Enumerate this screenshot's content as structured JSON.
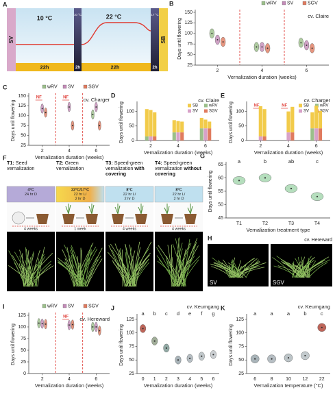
{
  "figure": {
    "A": {
      "label": "A",
      "left": "SV",
      "right": "SB",
      "phase1_temp": "10 °C",
      "phase2_temp": "10 °C",
      "phase3_temp": "22 °C",
      "phase4_temp": "17 °C",
      "durations": [
        "22h",
        "2h",
        "22h",
        "2h"
      ]
    },
    "F": {
      "label": "F",
      "treatments": [
        {
          "id": "T1:",
          "name": "Seed vernalization",
          "conditions": [
            "4°C",
            "24 hr D"
          ],
          "duration": "4 weeks"
        },
        {
          "id": "T2:",
          "name": "Green vernalization",
          "conditions": [
            "22°C/17°C",
            "22 hr L/",
            "2 hr D"
          ],
          "duration": "1 week"
        },
        {
          "id": "T3:",
          "name": "Speed-green vernalization",
          "emphasis": "with covering",
          "conditions": [
            "8°C",
            "22 hr L/",
            "2 hr D"
          ],
          "duration": "4 weeks"
        },
        {
          "id": "T4:",
          "name": "Speed-green vernalization",
          "emphasis": "without covering",
          "conditions": [
            "8°C",
            "22 hr L/",
            "2 hr D"
          ],
          "duration": "4 weeks"
        }
      ]
    },
    "H": {
      "label": "H",
      "subtitle": "cv. Hereward",
      "photos": [
        "SV",
        "SGV"
      ]
    }
  },
  "chart_data": [
    {
      "panel": "B",
      "type": "violin",
      "subtitle": "cv. Claire",
      "xlabel": "Vernalization duration (weeks)",
      "ylabel": "Days until flowering",
      "x": [
        2,
        4,
        6
      ],
      "xlim": [
        1,
        7
      ],
      "xticks": [
        2,
        4,
        6
      ],
      "vlines": [
        3,
        5
      ],
      "ylim": [
        25,
        150
      ],
      "yticks": [
        25,
        50,
        75,
        100,
        125,
        150
      ],
      "missing_label": "NF",
      "series": [
        {
          "name": "wRV",
          "color": "#9bbf8a",
          "values": [
            100,
            68,
            78
          ]
        },
        {
          "name": "SV",
          "color": "#c48bb8",
          "values": [
            85,
            68,
            72
          ]
        },
        {
          "name": "SGV",
          "color": "#e07b5f",
          "values": [
            80,
            65,
            65
          ]
        }
      ]
    },
    {
      "panel": "C",
      "type": "violin",
      "subtitle": "cv. Charger",
      "xlabel": "Vernalization duration (weeks)",
      "ylabel": "Days until flowering",
      "x": [
        2,
        4,
        6
      ],
      "xlim": [
        1,
        7
      ],
      "xticks": [
        2,
        4,
        6
      ],
      "vlines": [
        3,
        5
      ],
      "ylim": [
        25,
        150
      ],
      "yticks": [
        25,
        50,
        75,
        100,
        125,
        150
      ],
      "missing_label": "NF",
      "series": [
        {
          "name": "wRV",
          "color": "#9bbf8a",
          "values": [
            null,
            null,
            103
          ]
        },
        {
          "name": "SV",
          "color": "#c48bb8",
          "values": [
            118,
            122,
            122
          ]
        },
        {
          "name": "SGV",
          "color": "#e07b5f",
          "values": [
            108,
            75,
            75
          ]
        }
      ]
    },
    {
      "panel": "D",
      "type": "stacked_bar",
      "subtitle": "cv. Claire",
      "xlabel": "Vernalization duration (weeks)",
      "ylabel": "Days until flowering",
      "x": [
        2,
        4,
        6
      ],
      "xlim": [
        1,
        7
      ],
      "xticks": [
        2,
        4,
        6
      ],
      "ylim": [
        0,
        125
      ],
      "yticks": [
        0,
        50,
        100
      ],
      "missing_label": "NF",
      "sb_series": {
        "name": "SB",
        "color": "#f2cb4a"
      },
      "series": [
        {
          "name": "wRV",
          "color": "#9bbf8a",
          "values": [
            14,
            28,
            42
          ],
          "sb_values": [
            94,
            42,
            36
          ]
        },
        {
          "name": "SV",
          "color": "#d8a2c8",
          "values": [
            14,
            28,
            42
          ],
          "sb_values": [
            91,
            39,
            30
          ]
        },
        {
          "name": "SGV",
          "color": "#e07b5f",
          "values": [
            14,
            28,
            42
          ],
          "sb_values": [
            83,
            37,
            23
          ]
        }
      ]
    },
    {
      "panel": "E",
      "type": "stacked_bar",
      "subtitle": "cv. Charger",
      "xlabel": "Vernalization duration (weeks)",
      "ylabel": "Days until flowering",
      "x": [
        2,
        4,
        6
      ],
      "xlim": [
        1,
        7
      ],
      "xticks": [
        2,
        4,
        6
      ],
      "ylim": [
        0,
        125
      ],
      "yticks": [
        0,
        50,
        100
      ],
      "missing_label": "NF",
      "sb_series": {
        "name": "SB",
        "color": "#f2cb4a"
      },
      "series": [
        {
          "name": "wRV",
          "color": "#9bbf8a",
          "values": [
            null,
            null,
            42
          ],
          "sb_values": [
            null,
            null,
            55
          ]
        },
        {
          "name": "SV",
          "color": "#d8a2c8",
          "values": [
            14,
            28,
            42
          ],
          "sb_values": [
            104,
            72,
            78
          ]
        },
        {
          "name": "SGV",
          "color": "#e07b5f",
          "values": [
            14,
            28,
            42
          ],
          "sb_values": [
            94,
            88,
            60
          ]
        }
      ]
    },
    {
      "panel": "G",
      "type": "violin",
      "xlabel": "Vernalization treatment type",
      "ylabel": "Days until flowering",
      "categories": [
        "T1",
        "T2",
        "T3",
        "T4"
      ],
      "values": [
        59,
        60,
        56,
        53
      ],
      "letters": [
        "a",
        "b",
        "ab",
        "c"
      ],
      "color": "#a8d8b2",
      "ylim": [
        45,
        65
      ],
      "yticks": [
        45,
        50,
        55,
        60,
        65
      ]
    },
    {
      "panel": "I",
      "type": "violin",
      "subtitle": "cv. Hereward",
      "xlabel": "Vernalization duration (weeks)",
      "ylabel": "Days until flowering",
      "x": [
        2,
        4,
        6
      ],
      "xlim": [
        1,
        7
      ],
      "xticks": [
        2,
        4,
        6
      ],
      "vlines": [
        3,
        5
      ],
      "ylim": [
        0,
        125
      ],
      "yticks": [
        0,
        25,
        50,
        75,
        100,
        125
      ],
      "missing_label": "NF",
      "series": [
        {
          "name": "wRV",
          "color": "#9bbf8a",
          "values": [
            108,
            null,
            100
          ]
        },
        {
          "name": "SV",
          "color": "#c48bb8",
          "values": [
            107,
            104,
            100
          ]
        },
        {
          "name": "SGV",
          "color": "#e07b5f",
          "values": [
            106,
            105,
            92
          ]
        }
      ]
    },
    {
      "panel": "J",
      "type": "violin",
      "subtitle": "cv. Keumgang",
      "xlabel": "Vernalization duration (weeks)",
      "ylabel": "Days until flowering",
      "categories": [
        "0",
        "1",
        "2",
        "3",
        "4",
        "5",
        "6"
      ],
      "values": [
        108,
        85,
        72,
        50,
        53,
        57,
        60
      ],
      "letters": [
        "a",
        "b",
        "c",
        "d",
        "e",
        "f",
        "g"
      ],
      "colors": [
        "#b34a3c",
        "#8f9f86",
        "#7f9b95",
        "#9aa7ad",
        "#a9b3b8",
        "#b5bdc1",
        "#c2c7ca"
      ],
      "ylim": [
        25,
        130
      ],
      "yticks": [
        25,
        50,
        75,
        100,
        125
      ]
    },
    {
      "panel": "K",
      "type": "violin",
      "subtitle": "cv. Keumgang",
      "xlabel": "Vernalization temperature (°C)",
      "ylabel": "Days until flowering",
      "categories": [
        "6",
        "8",
        "10",
        "12",
        "22"
      ],
      "values": [
        52,
        52,
        54,
        58,
        110
      ],
      "letters": [
        "a",
        "a",
        "a",
        "b",
        "c"
      ],
      "colors": [
        "#9aa7ad",
        "#a9b3b8",
        "#b0babd",
        "#b9c1c4",
        "#b34a3c"
      ],
      "ylim": [
        25,
        130
      ],
      "yticks": [
        25,
        50,
        75,
        100,
        125
      ]
    }
  ]
}
